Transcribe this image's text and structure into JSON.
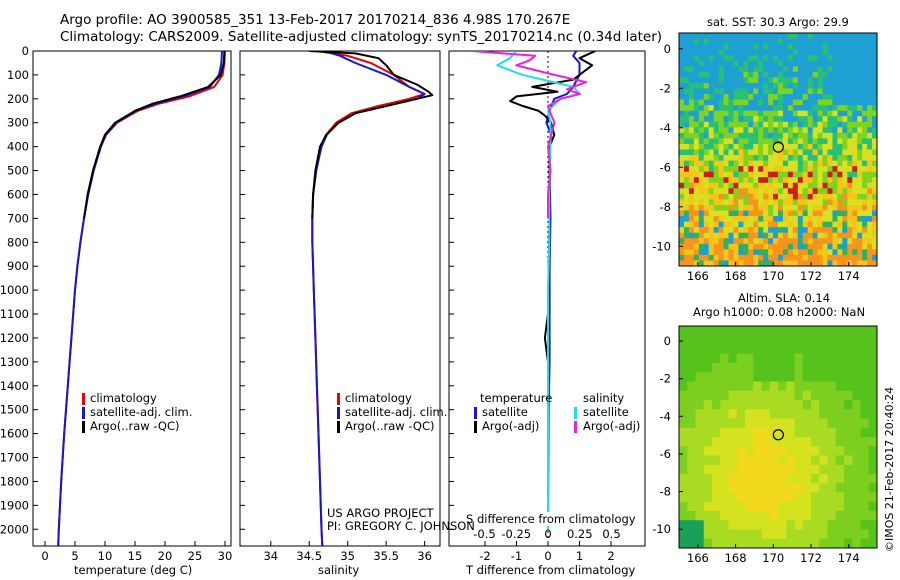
{
  "header": {
    "title_line1": "Argo profile: AO 3900585_351 13-Feb-2017 20170214_836 4.98S 170.267E",
    "title_line2": "Climatology: CARS2009. Satellite-adjusted climatology: synTS_20170214.nc (0.34d later)"
  },
  "colors": {
    "climatology": "#ee0000",
    "satellite": "#1515d5",
    "argo": "#000000",
    "sal_satellite": "#22ddee",
    "sal_argo": "#ee22dd"
  },
  "chart_data": [
    {
      "id": "temperature",
      "type": "line",
      "xlabel": "temperature (deg C)",
      "xlim": [
        -2,
        31
      ],
      "ylim": [
        2070,
        0
      ],
      "xticks": [
        "0",
        "5",
        "10",
        "15",
        "20",
        "25",
        "30"
      ],
      "yticks": [
        "0",
        "100",
        "200",
        "300",
        "400",
        "500",
        "600",
        "700",
        "800",
        "900",
        "1000",
        "1100",
        "1200",
        "1300",
        "1400",
        "1500",
        "1600",
        "1700",
        "1800",
        "1900",
        "2000"
      ],
      "legend": [
        "climatology",
        "satellite-adj. clim.",
        "Argo(..raw -QC)"
      ],
      "series": [
        {
          "name": "climatology",
          "depth": [
            0,
            50,
            100,
            150,
            190,
            220,
            250,
            300,
            350,
            400,
            500,
            600,
            700,
            800,
            900,
            1000,
            1200,
            1400,
            1600,
            1800,
            2000,
            2070
          ],
          "values": [
            30.0,
            29.9,
            29.6,
            28.2,
            24.0,
            19.0,
            15.5,
            12.0,
            10.2,
            9.3,
            8.1,
            7.2,
            6.5,
            5.9,
            5.4,
            5.0,
            4.4,
            3.8,
            3.2,
            2.7,
            2.3,
            2.2
          ]
        },
        {
          "name": "satellite-adj. clim.",
          "depth": [
            0,
            50,
            100,
            150,
            190,
            220,
            250,
            300,
            350,
            400,
            500,
            600,
            700,
            800,
            900,
            1000,
            1200,
            1400,
            1600,
            1800,
            2000,
            2070
          ],
          "values": [
            29.5,
            29.4,
            29.0,
            27.5,
            23.0,
            18.5,
            15.2,
            11.9,
            10.1,
            9.3,
            8.1,
            7.2,
            6.5,
            5.9,
            5.4,
            5.0,
            4.4,
            3.8,
            3.2,
            2.7,
            2.3,
            2.2
          ]
        },
        {
          "name": "Argo(..raw -QC)",
          "depth": [
            0,
            50,
            100,
            150,
            190,
            220,
            250,
            300,
            350,
            400,
            500,
            600,
            700
          ],
          "values": [
            29.9,
            29.8,
            29.3,
            27.2,
            22.5,
            18.0,
            15.0,
            11.7,
            10.0,
            9.2,
            8.0,
            7.1,
            6.5
          ]
        }
      ]
    },
    {
      "id": "salinity",
      "type": "line",
      "xlabel": "salinity",
      "xlim": [
        33.6,
        36.2
      ],
      "ylim": [
        2070,
        0
      ],
      "xticks": [
        "34",
        "34.5",
        "35",
        "35.5",
        "36"
      ],
      "legend": [
        "climatology",
        "satellite-adj. clim.",
        "Argo(..raw -QC)"
      ],
      "annotation": [
        "US ARGO PROJECT",
        "PI: GREGORY C. JOHNSON"
      ],
      "series": [
        {
          "name": "climatology",
          "depth": [
            0,
            20,
            50,
            100,
            150,
            180,
            200,
            230,
            260,
            300,
            350,
            400,
            500,
            600,
            700,
            800,
            900,
            1000,
            1200,
            1400,
            1600,
            1800,
            2000,
            2070
          ],
          "values": [
            34.6,
            35.0,
            35.3,
            35.6,
            35.8,
            36.0,
            35.8,
            35.4,
            35.05,
            34.85,
            34.72,
            34.65,
            34.59,
            34.55,
            34.54,
            34.54,
            34.55,
            34.56,
            34.58,
            34.6,
            34.62,
            34.64,
            34.66,
            34.67
          ]
        },
        {
          "name": "satellite-adj. clim.",
          "depth": [
            0,
            20,
            50,
            100,
            150,
            180,
            200,
            230,
            260,
            300,
            350,
            400,
            500,
            600,
            700,
            800,
            900,
            1000,
            1200,
            1400,
            1600,
            1800,
            2000,
            2070
          ],
          "values": [
            34.7,
            34.9,
            35.1,
            35.5,
            35.8,
            36.0,
            35.9,
            35.5,
            35.1,
            34.88,
            34.73,
            34.66,
            34.59,
            34.55,
            34.54,
            34.54,
            34.55,
            34.56,
            34.58,
            34.6,
            34.62,
            34.64,
            34.66,
            34.67
          ]
        },
        {
          "name": "Argo(..raw -QC)",
          "depth": [
            0,
            10,
            30,
            60,
            100,
            140,
            170,
            185,
            200,
            230,
            260,
            300,
            350,
            400,
            500,
            600,
            700
          ],
          "values": [
            34.5,
            35.1,
            35.4,
            35.5,
            35.6,
            35.9,
            36.05,
            36.1,
            35.9,
            35.5,
            35.1,
            34.88,
            34.72,
            34.64,
            34.58,
            34.55,
            34.54
          ]
        }
      ]
    },
    {
      "id": "difference",
      "type": "line",
      "xlabel_T": "T difference from climatology",
      "xlabel_S": "S difference from climatology",
      "xlim": [
        -3,
        3
      ],
      "ylim": [
        2070,
        0
      ],
      "xticks_T": [
        "-2",
        "-1",
        "0",
        "1",
        "2"
      ],
      "xticks_S": [
        "-0.5",
        "-0.25",
        "0",
        "0.25",
        "0.5"
      ],
      "legend_temperature": [
        "temperature",
        "satellite",
        "Argo(-adj)"
      ],
      "legend_salinity": [
        "salinity",
        "satellite",
        "Argo(-adj)"
      ],
      "series": [
        {
          "name": "temperature satellite",
          "depth": [
            0,
            20,
            50,
            100,
            150,
            180,
            200,
            250,
            300,
            350,
            400,
            500,
            700,
            900,
            1100,
            1300,
            1500,
            2000
          ],
          "values": [
            0.9,
            0.8,
            1.0,
            1.0,
            0.8,
            0.6,
            0.2,
            0.05,
            -0.05,
            0.1,
            0.05,
            0.05,
            0.08,
            0.05,
            0.05,
            0.05,
            0.02,
            0.0
          ]
        },
        {
          "name": "temperature Argo(-adj)",
          "depth": [
            0,
            30,
            60,
            90,
            120,
            150,
            170,
            190,
            210,
            230,
            250,
            270,
            300,
            350,
            400,
            500,
            600,
            700,
            1100,
            1200,
            1300
          ],
          "values": [
            1.5,
            1.0,
            1.4,
            1.1,
            0.8,
            -0.5,
            0.3,
            -1.0,
            -1.2,
            -0.8,
            -0.3,
            -0.1,
            0.1,
            0.2,
            0.05,
            0.05,
            0.05,
            0.05,
            0.0,
            -0.1,
            0.0
          ]
        },
        {
          "name": "salinity satellite",
          "depth": [
            0,
            30,
            60,
            100,
            150,
            180,
            200,
            250,
            300,
            400,
            600,
            800,
            1000,
            1500,
            2000
          ],
          "values": [
            -0.25,
            -0.3,
            -0.4,
            -0.2,
            0.2,
            0.25,
            0.1,
            0.0,
            0.02,
            0.02,
            0.01,
            0.01,
            0.0,
            0.0,
            0.0
          ]
        },
        {
          "name": "salinity Argo(-adj)",
          "depth": [
            0,
            20,
            40,
            60,
            80,
            100,
            130,
            160,
            180,
            200,
            230,
            260,
            300,
            400,
            500,
            600,
            700
          ],
          "values": [
            -0.6,
            -0.1,
            -0.15,
            -0.25,
            -0.1,
            0.05,
            0.3,
            0.15,
            0.25,
            0.1,
            0.0,
            0.02,
            0.05,
            0.0,
            0.02,
            0.0,
            0.0
          ]
        }
      ]
    },
    {
      "id": "sst-map",
      "type": "heatmap",
      "title": "sat. SST: 30.3 Argo: 29.9",
      "xticks": [
        "166",
        "168",
        "170",
        "172",
        "174"
      ],
      "yticks": [
        "0",
        "-2",
        "-4",
        "-6",
        "-8",
        "-10"
      ],
      "marker": {
        "lon": 170.267,
        "lat": -4.98
      }
    },
    {
      "id": "sla-map",
      "type": "heatmap",
      "title_line1": "Altim. SLA: 0.14",
      "title_line2": "Argo h1000: 0.08 h2000: NaN",
      "xticks": [
        "166",
        "168",
        "170",
        "172",
        "174"
      ],
      "yticks": [
        "0",
        "-2",
        "-4",
        "-6",
        "-8",
        "-10"
      ],
      "marker": {
        "lon": 170.267,
        "lat": -4.98
      }
    }
  ],
  "footer": {
    "stamp": "©IMOS 21-Feb-2017 20:40:24"
  }
}
